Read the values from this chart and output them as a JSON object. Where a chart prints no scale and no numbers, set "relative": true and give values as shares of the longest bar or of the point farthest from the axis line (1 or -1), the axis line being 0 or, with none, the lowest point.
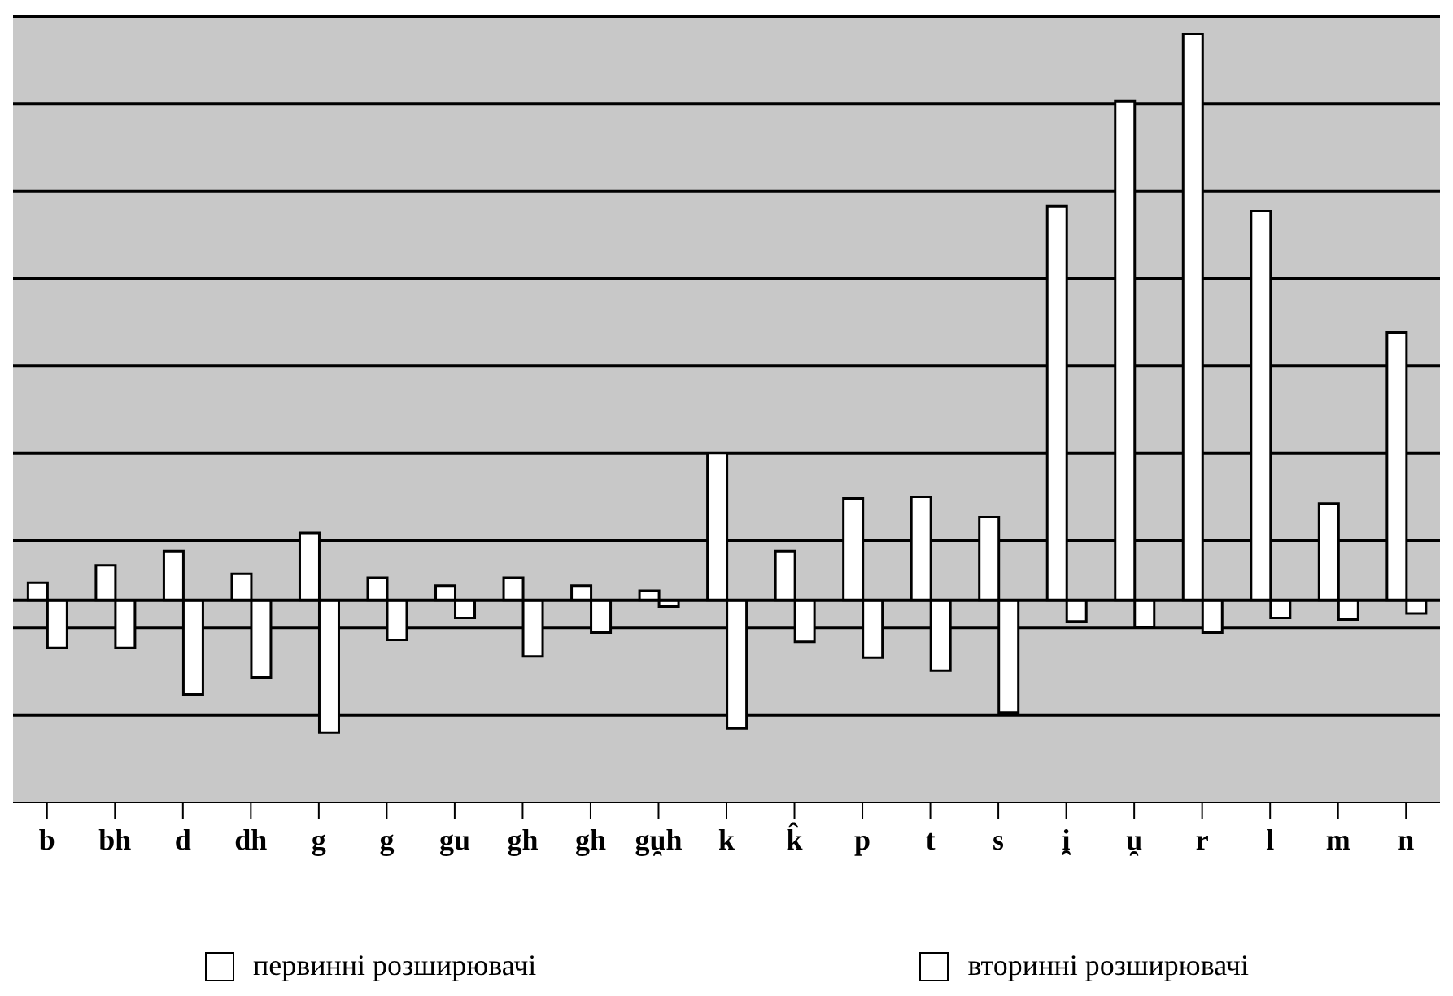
{
  "chart_data": {
    "type": "bar",
    "relative": true,
    "grid": "y",
    "legend": "bottom",
    "categories": [
      "b",
      "bh",
      "d",
      "dh",
      "g",
      "g",
      "gu",
      "gh",
      "gh",
      "gu̯h",
      "k",
      "k̂",
      "p",
      "t",
      "s",
      "i̯",
      "u̯",
      "r",
      "l",
      "m",
      "n"
    ],
    "series": [
      {
        "name": "первинні розширювачі",
        "color": "#ffffff",
        "values": [
          0.031,
          0.062,
          0.087,
          0.047,
          0.119,
          0.04,
          0.026,
          0.04,
          0.026,
          0.017,
          0.26,
          0.087,
          0.18,
          0.183,
          0.147,
          0.696,
          0.881,
          1,
          0.687,
          0.171,
          0.473
        ]
      },
      {
        "name": "вторинні розширювачі",
        "color": "#ffffff",
        "values": [
          -0.084,
          -0.084,
          -0.166,
          -0.136,
          -0.233,
          -0.07,
          -0.031,
          -0.099,
          -0.057,
          -0.011,
          -0.226,
          -0.073,
          -0.101,
          -0.124,
          -0.198,
          -0.037,
          -0.047,
          -0.057,
          -0.031,
          -0.034,
          -0.023
        ]
      }
    ]
  }
}
